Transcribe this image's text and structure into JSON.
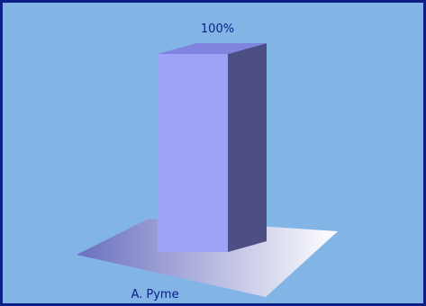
{
  "chart_data": {
    "type": "bar",
    "style": "3d-column",
    "categories": [
      "A. Pyme"
    ],
    "values": [
      100
    ],
    "data_labels": [
      "100%"
    ],
    "ylim": [
      0,
      100
    ],
    "grid": false,
    "legend": "none",
    "colors": {
      "background": "#82b4e6",
      "border": "#0b1f86",
      "bar_front": "#9fa3f8",
      "bar_top": "#7f84df",
      "bar_side": "#4d4f84",
      "floor_dark": "#6b6fbf",
      "floor_light": "#ffffff",
      "text": "#0b1f86"
    }
  }
}
